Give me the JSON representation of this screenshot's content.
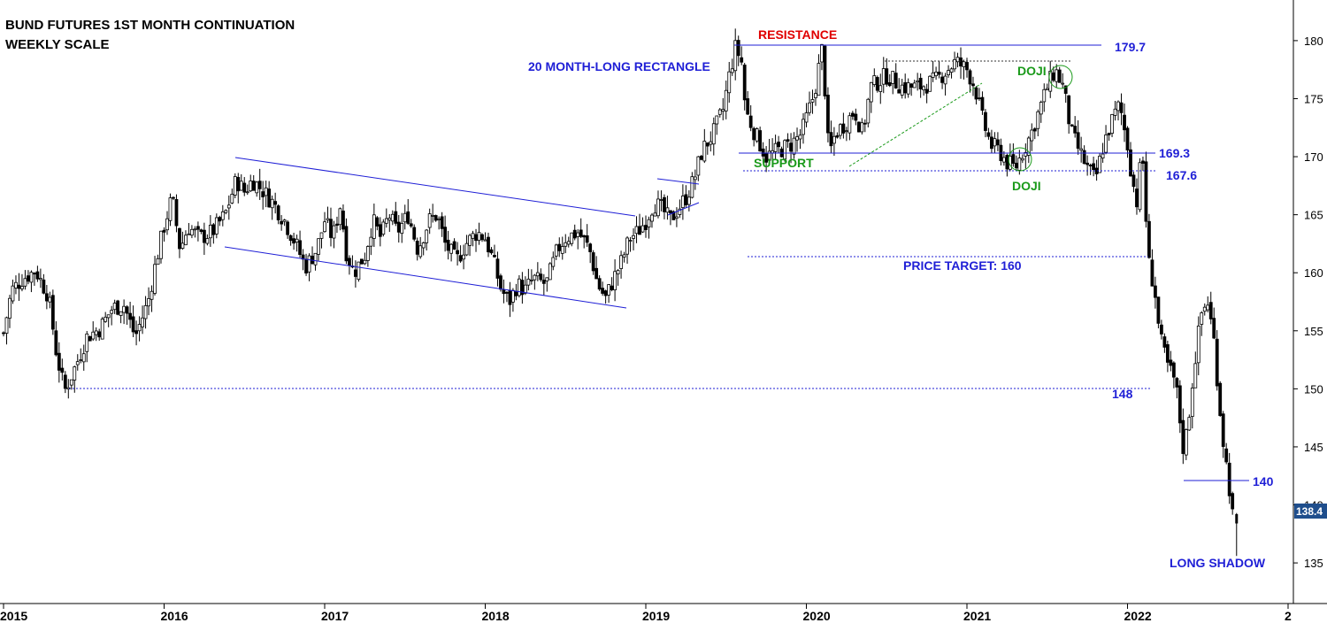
{
  "chart_data": {
    "type": "candlestick",
    "title": "BUND FUTURES 1ST MONTH CONTINUATION",
    "subtitle": "WEEKLY SCALE",
    "x_tick_labels": [
      "2015",
      "2016",
      "2017",
      "2018",
      "2019",
      "2020",
      "2021",
      "2022",
      "2"
    ],
    "y_ticks": [
      135,
      140,
      145,
      150,
      155,
      160,
      165,
      170,
      175,
      180
    ],
    "ylim": [
      131.5,
      183.5
    ],
    "last_price": "138.4",
    "levels": {
      "resistance": {
        "value": 179.7,
        "label": "179.7"
      },
      "support": {
        "value": 169.3,
        "label": "169.3"
      },
      "support_low": {
        "value": 167.6,
        "label": "167.6"
      },
      "price_target": {
        "value": 160
      },
      "level_148": {
        "value": 148.4,
        "label": "148"
      },
      "level_140": {
        "value": 140.7,
        "label": "140"
      }
    },
    "annotations": {
      "resistance": "RESISTANCE",
      "support": "SUPPORT",
      "rectangle": "20 MONTH-LONG RECTANGLE",
      "price_target": "PRICE TARGET: 160",
      "doji_top": "DOJI",
      "doji_bottom": "DOJI",
      "long_shadow": "LONG SHADOW"
    },
    "colors": {
      "line_blue": "#1f1fd6",
      "label_blue": "#1f1fd6",
      "green": "#1a9a1a",
      "red": "#e00000",
      "candle": "#000000",
      "last_price_bg": "#1f4e8c"
    },
    "price_path": [
      [
        2015.0,
        154.8
      ],
      [
        2015.05,
        158.5
      ],
      [
        2015.12,
        159.5
      ],
      [
        2015.2,
        160.2
      ],
      [
        2015.28,
        158.0
      ],
      [
        2015.33,
        153.0
      ],
      [
        2015.38,
        149.8
      ],
      [
        2015.45,
        152.0
      ],
      [
        2015.52,
        154.5
      ],
      [
        2015.6,
        155.2
      ],
      [
        2015.68,
        157.0
      ],
      [
        2015.75,
        157.2
      ],
      [
        2015.82,
        154.5
      ],
      [
        2015.9,
        157.5
      ],
      [
        2015.95,
        161.0
      ],
      [
        2016.0,
        164.0
      ],
      [
        2016.05,
        166.5
      ],
      [
        2016.1,
        162.0
      ],
      [
        2016.15,
        164.0
      ],
      [
        2016.22,
        163.0
      ],
      [
        2016.3,
        163.5
      ],
      [
        2016.38,
        165.0
      ],
      [
        2016.45,
        168.0
      ],
      [
        2016.5,
        167.0
      ],
      [
        2016.55,
        168.0
      ],
      [
        2016.62,
        167.0
      ],
      [
        2016.68,
        166.0
      ],
      [
        2016.75,
        164.5
      ],
      [
        2016.82,
        162.5
      ],
      [
        2016.88,
        160.5
      ],
      [
        2016.95,
        162.0
      ],
      [
        2017.0,
        164.5
      ],
      [
        2017.05,
        163.0
      ],
      [
        2017.1,
        166.0
      ],
      [
        2017.13,
        162.0
      ],
      [
        2017.18,
        160.0
      ],
      [
        2017.25,
        161.5
      ],
      [
        2017.3,
        164.5
      ],
      [
        2017.35,
        163.0
      ],
      [
        2017.4,
        165.0
      ],
      [
        2017.45,
        163.5
      ],
      [
        2017.52,
        165.0
      ],
      [
        2017.58,
        162.0
      ],
      [
        2017.65,
        164.5
      ],
      [
        2017.7,
        165.0
      ],
      [
        2017.75,
        162.5
      ],
      [
        2017.82,
        161.0
      ],
      [
        2017.88,
        162.5
      ],
      [
        2017.95,
        163.5
      ],
      [
        2018.0,
        163.0
      ],
      [
        2018.05,
        161.0
      ],
      [
        2018.1,
        158.5
      ],
      [
        2018.15,
        157.5
      ],
      [
        2018.2,
        159.0
      ],
      [
        2018.25,
        158.5
      ],
      [
        2018.3,
        159.5
      ],
      [
        2018.38,
        159.0
      ],
      [
        2018.45,
        162.0
      ],
      [
        2018.5,
        163.0
      ],
      [
        2018.58,
        163.5
      ],
      [
        2018.65,
        162.0
      ],
      [
        2018.7,
        159.0
      ],
      [
        2018.75,
        157.8
      ],
      [
        2018.8,
        159.5
      ],
      [
        2018.85,
        161.0
      ],
      [
        2018.9,
        163.0
      ],
      [
        2018.95,
        163.5
      ],
      [
        2019.0,
        164.5
      ],
      [
        2019.05,
        166.0
      ],
      [
        2019.1,
        165.5
      ],
      [
        2019.15,
        164.5
      ],
      [
        2019.2,
        165.5
      ],
      [
        2019.25,
        166.5
      ],
      [
        2019.3,
        168.0
      ],
      [
        2019.35,
        170.5
      ],
      [
        2019.42,
        172.0
      ],
      [
        2019.48,
        174.0
      ],
      [
        2019.52,
        177.0
      ],
      [
        2019.56,
        179.5
      ],
      [
        2019.6,
        178.0
      ],
      [
        2019.62,
        174.0
      ],
      [
        2019.68,
        172.0
      ],
      [
        2019.75,
        170.0
      ],
      [
        2019.82,
        170.5
      ],
      [
        2019.9,
        171.0
      ],
      [
        2019.97,
        172.0
      ],
      [
        2020.05,
        175.5
      ],
      [
        2020.1,
        179.5
      ],
      [
        2020.14,
        170.0
      ],
      [
        2020.18,
        172.0
      ],
      [
        2020.25,
        173.0
      ],
      [
        2020.3,
        174.0
      ],
      [
        2020.35,
        172.0
      ],
      [
        2020.4,
        176.0
      ],
      [
        2020.5,
        177.0
      ],
      [
        2020.6,
        176.0
      ],
      [
        2020.7,
        176.0
      ],
      [
        2020.8,
        176.5
      ],
      [
        2020.88,
        177.5
      ],
      [
        2020.93,
        178.2
      ],
      [
        2021.0,
        177.5
      ],
      [
        2021.05,
        176.0
      ],
      [
        2021.1,
        173.0
      ],
      [
        2021.15,
        171.0
      ],
      [
        2021.2,
        170.5
      ],
      [
        2021.25,
        169.5
      ],
      [
        2021.3,
        169.0
      ],
      [
        2021.35,
        170.5
      ],
      [
        2021.4,
        172.0
      ],
      [
        2021.45,
        174.0
      ],
      [
        2021.5,
        176.0
      ],
      [
        2021.55,
        177.5
      ],
      [
        2021.6,
        176.0
      ],
      [
        2021.65,
        172.0
      ],
      [
        2021.7,
        170.5
      ],
      [
        2021.75,
        169.0
      ],
      [
        2021.8,
        168.0
      ],
      [
        2021.85,
        171.0
      ],
      [
        2021.9,
        173.0
      ],
      [
        2021.95,
        174.5
      ],
      [
        2022.0,
        171.0
      ],
      [
        2022.03,
        168.0
      ],
      [
        2022.06,
        166.0
      ],
      [
        2022.09,
        171.0
      ],
      [
        2022.13,
        161.0
      ],
      [
        2022.17,
        158.5
      ],
      [
        2022.2,
        154.5
      ],
      [
        2022.25,
        152.0
      ],
      [
        2022.3,
        150.5
      ],
      [
        2022.35,
        144.5
      ],
      [
        2022.38,
        147.5
      ],
      [
        2022.42,
        152.5
      ],
      [
        2022.46,
        156.5
      ],
      [
        2022.5,
        157.5
      ],
      [
        2022.54,
        154.0
      ],
      [
        2022.57,
        149.0
      ],
      [
        2022.6,
        145.0
      ],
      [
        2022.63,
        142.0
      ],
      [
        2022.66,
        138.4
      ]
    ]
  }
}
